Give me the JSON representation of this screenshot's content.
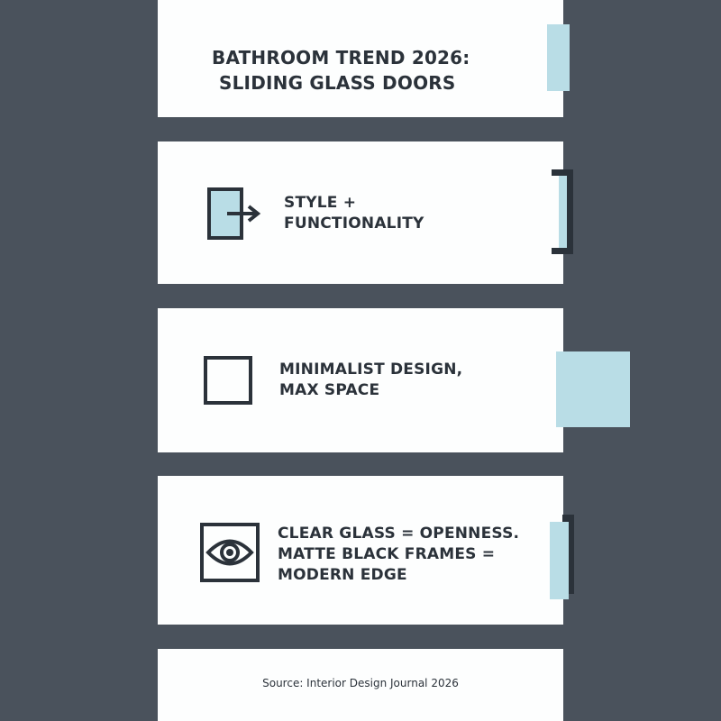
{
  "title": {
    "line1": "BATHROOM TREND 2026:",
    "line2": "SLIDING GLASS DOORS"
  },
  "items": [
    {
      "icon": "sliding-door-arrow-icon",
      "lines": [
        "STYLE +",
        "FUNCTIONALITY"
      ]
    },
    {
      "icon": "square-icon",
      "lines": [
        "MINIMALIST DESIGN,",
        "MAX SPACE"
      ]
    },
    {
      "icon": "eye-icon",
      "lines": [
        "CLEAR GLASS = OPENNESS.",
        "MATTE BLACK FRAMES =",
        "MODERN EDGE"
      ]
    }
  ],
  "source": "Source: Interior Design Journal 2026",
  "colors": {
    "background": "#4a525c",
    "card": "#fdfefe",
    "accent": "#b9dde6",
    "text": "#2b323a"
  }
}
